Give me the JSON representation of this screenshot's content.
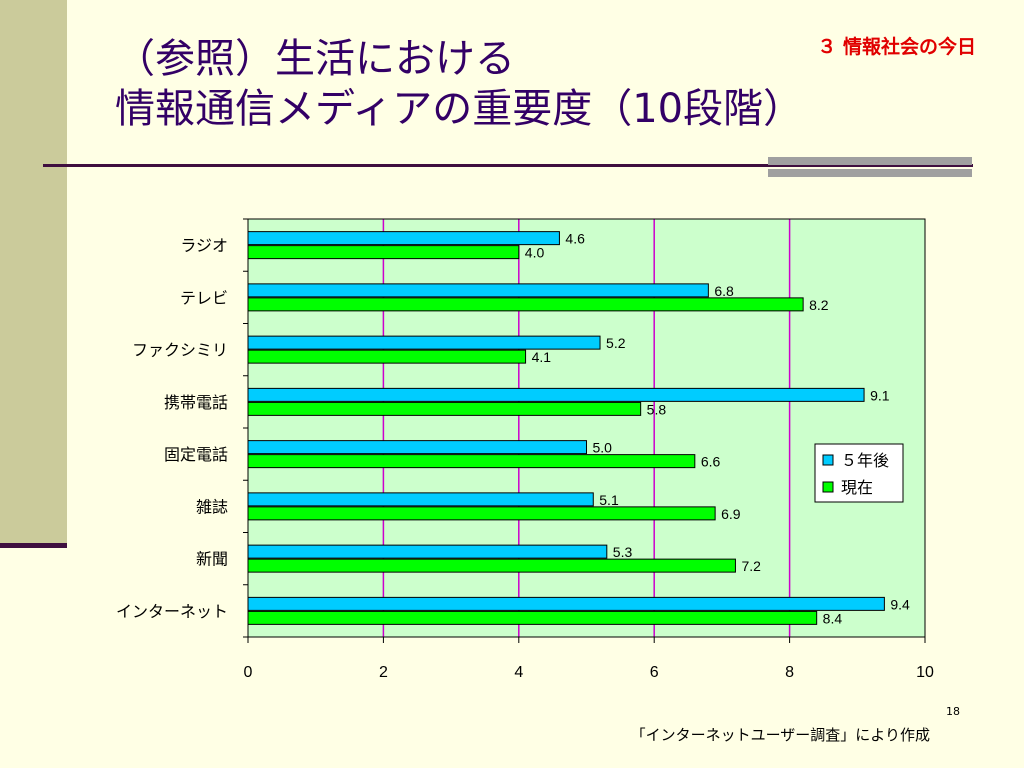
{
  "slide": {
    "title_line1": "（参照）生活における",
    "title_line2": "情報通信メディアの重要度（10段階）",
    "section": "３ 情報社会の今日",
    "footnote": "「インターネットユーザー調査」により作成",
    "page_number": "18"
  },
  "chart_data": {
    "type": "bar",
    "orientation": "horizontal",
    "categories": [
      "ラジオ",
      "テレビ",
      "ファクシミリ",
      "携帯電話",
      "固定電話",
      "雑誌",
      "新聞",
      "インターネット"
    ],
    "series": [
      {
        "name": "５年後",
        "color": "#00CCFF",
        "values": [
          4.6,
          6.8,
          5.2,
          9.1,
          5.0,
          5.1,
          5.3,
          9.4
        ]
      },
      {
        "name": "現在",
        "color": "#00FF00",
        "values": [
          4.0,
          8.2,
          4.1,
          5.8,
          6.6,
          6.9,
          7.2,
          8.4
        ]
      }
    ],
    "xlim": [
      0,
      10
    ],
    "xticks": [
      "0",
      "2",
      "4",
      "6",
      "8",
      "10"
    ],
    "value_labels": [
      [
        "4.6",
        "6.8",
        "5.2",
        "9.1",
        "5.0",
        "5.1",
        "5.3",
        "9.4"
      ],
      [
        "4.0",
        "8.2",
        "4.1",
        "5.8",
        "6.6",
        "6.9",
        "7.2",
        "8.4"
      ]
    ],
    "grid": true,
    "grid_color": "#CC00CC",
    "plot_background": "#CCFFCC",
    "legend_position": "right"
  }
}
